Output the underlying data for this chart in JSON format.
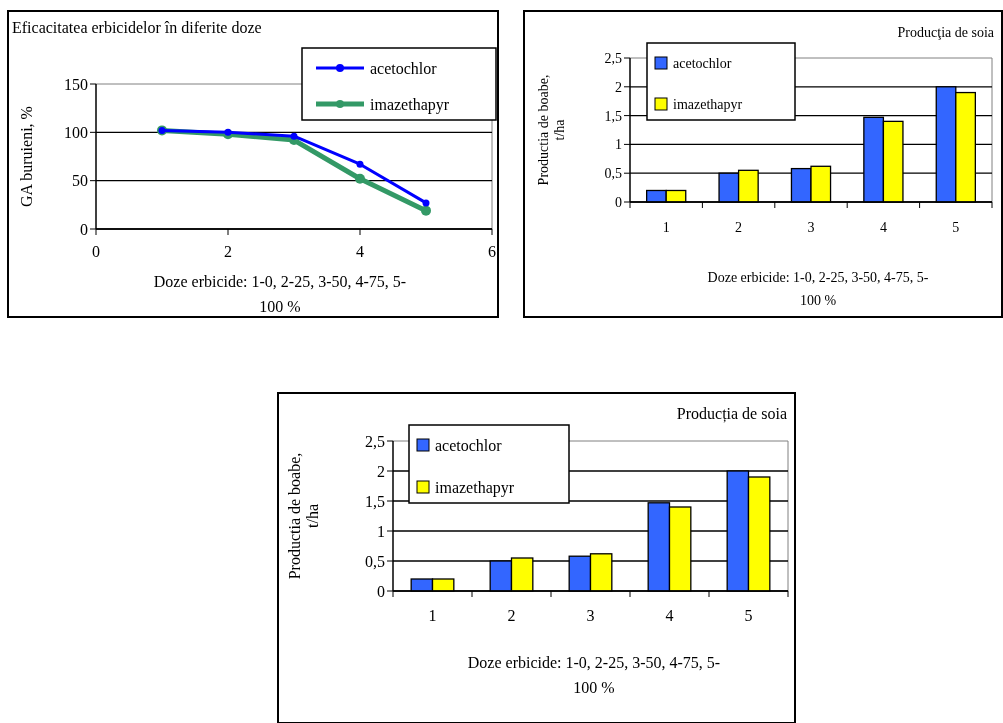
{
  "chart_data": [
    {
      "type": "line",
      "title": "Eficacitatea erbicidelor în diferite doze",
      "xlabel": "Doze erbicide: 1-0, 2-25, 3-50, 4-75, 5-100 %",
      "ylabel": "GA buruieni, %",
      "x": [
        1,
        2,
        3,
        4,
        5
      ],
      "xlim": [
        0,
        6
      ],
      "xticks": [
        0,
        2,
        4,
        6
      ],
      "ylim": [
        0,
        150
      ],
      "yticks": [
        0,
        50,
        100,
        150
      ],
      "grid": "y",
      "legend": "top right",
      "marker": "circle",
      "line_style": "solid",
      "series": [
        {
          "name": "acetochlor",
          "color": "#0000ff",
          "values": [
            102,
            100,
            96,
            67,
            27
          ]
        },
        {
          "name": "imazethapyr",
          "color": "#339966",
          "values": [
            102,
            98,
            92,
            52,
            19
          ]
        }
      ]
    },
    {
      "type": "bar",
      "title": "Producţia de soia",
      "xlabel": "Doze erbicide: 1-0, 2-25, 3-50, 4-75, 5-100 %",
      "ylabel": "Productia de boabe, t/ha",
      "categories": [
        "1",
        "2",
        "3",
        "4",
        "5"
      ],
      "ylim": [
        0,
        2.5
      ],
      "yticks": [
        0,
        {
          "value": 0.5,
          "label": "0,5"
        },
        1,
        {
          "value": 1.5,
          "label": "1,5"
        },
        2,
        {
          "value": 2.5,
          "label": "2,5"
        }
      ],
      "grid": "y",
      "legend": "top left",
      "series": [
        {
          "name": "acetochlor",
          "color": "#3366ff",
          "values": [
            0.2,
            0.5,
            0.58,
            1.47,
            2.0
          ]
        },
        {
          "name": "imazethapyr",
          "color": "#ffff00",
          "values": [
            0.2,
            0.55,
            0.62,
            1.4,
            1.9
          ]
        }
      ]
    },
    {
      "type": "bar",
      "title": "Producția de soia",
      "xlabel": "Doze erbicide: 1-0, 2-25, 3-50, 4-75, 5-100 %",
      "ylabel": "Productia de boabe, t/ha",
      "categories": [
        "1",
        "2",
        "3",
        "4",
        "5"
      ],
      "ylim": [
        0,
        2.5
      ],
      "yticks": [
        0,
        {
          "value": 0.5,
          "label": "0,5"
        },
        1,
        {
          "value": 1.5,
          "label": "1,5"
        },
        2,
        {
          "value": 2.5,
          "label": "2,5"
        }
      ],
      "grid": "y",
      "legend": "top left",
      "series": [
        {
          "name": "acetochlor",
          "color": "#3366ff",
          "values": [
            0.2,
            0.5,
            0.58,
            1.47,
            2.0
          ]
        },
        {
          "name": "imazethapyr",
          "color": "#ffff00",
          "values": [
            0.2,
            0.55,
            0.62,
            1.4,
            1.9
          ]
        }
      ]
    }
  ]
}
